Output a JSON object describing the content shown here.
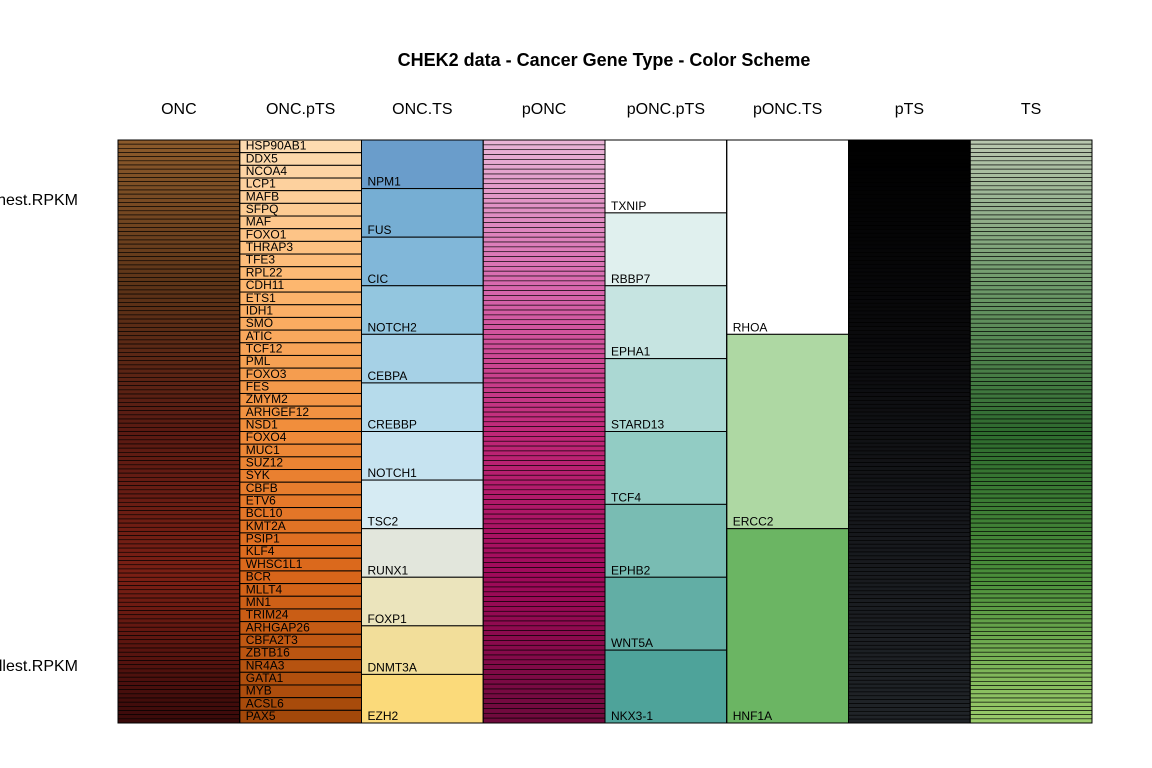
{
  "chart_data": {
    "type": "stacked-color-columns",
    "title": "CHEK2 data - Cancer Gene Type - Color Scheme",
    "row_labels": [
      "hest.RPKM",
      "llest.RPKM"
    ],
    "columns": [
      {
        "name": "ONC",
        "count": 140,
        "colors": [
          "#8B5A2B",
          "#5C3317",
          "#5A1A12",
          "#7A1F14",
          "#3A0A0A"
        ],
        "labels": []
      },
      {
        "name": "ONC.pTS",
        "colors": [
          "#FDDBB0",
          "#FDB66E",
          "#F08C3A",
          "#D9661A",
          "#A3480A"
        ],
        "labels": [
          "HSP90AB1",
          "DDX5",
          "NCOA4",
          "LCP1",
          "MAFB",
          "SFPQ",
          "MAF",
          "FOXO1",
          "THRAP3",
          "TFE3",
          "RPL22",
          "CDH11",
          "ETS1",
          "IDH1",
          "SMO",
          "ATIC",
          "TCF12",
          "PML",
          "FOXO3",
          "FES",
          "ZMYM2",
          "ARHGEF12",
          "NSD1",
          "FOXO4",
          "MUC1",
          "SUZ12",
          "SYK",
          "CBFB",
          "ETV6",
          "BCL10",
          "KMT2A",
          "PSIP1",
          "KLF4",
          "WHSC1L1",
          "BCR",
          "MLLT4",
          "MN1",
          "TRIM24",
          "ARHGAP26",
          "CBFA2T3",
          "ZBTB16",
          "NR4A3",
          "GATA1",
          "MYB",
          "ACSL6",
          "PAX5"
        ]
      },
      {
        "name": "ONC.TS",
        "labels": [
          "NPM1",
          "FUS",
          "CIC",
          "NOTCH2",
          "CEBPA",
          "CREBBP",
          "NOTCH1",
          "TSC2",
          "RUNX1",
          "FOXP1",
          "DNMT3A",
          "EZH2"
        ],
        "colors": [
          "#6A9DCB",
          "#76AED3",
          "#81B7D9",
          "#93C6DF",
          "#A6D1E6",
          "#B6DBEB",
          "#C6E3F0",
          "#D6EBF3",
          "#E2E6DC",
          "#EBE4BC",
          "#F2DE9A",
          "#FBDA7A"
        ]
      },
      {
        "name": "pONC",
        "count": 120,
        "colors": [
          "#E8B3D6",
          "#D868AE",
          "#C02878",
          "#A00A5A",
          "#6E0A3C"
        ],
        "labels": []
      },
      {
        "name": "pONC.pTS",
        "labels": [
          "TXNIP",
          "RBBP7",
          "EPHA1",
          "STARD13",
          "TCF4",
          "EPHB2",
          "WNT5A",
          "NKX3-1"
        ],
        "colors": [
          "#FFFFFF",
          "#E0F0EE",
          "#C6E4E1",
          "#ABD8D3",
          "#92CCC4",
          "#79BCB3",
          "#62AEA5",
          "#4EA39A"
        ]
      },
      {
        "name": "pONC.TS",
        "labels": [
          "RHOA",
          "ERCC2",
          "HNF1A"
        ],
        "colors": [
          "#FFFFFF",
          "#AED8A3",
          "#6BB563"
        ]
      },
      {
        "name": "pTS",
        "count": 150,
        "colors": [
          "#000000",
          "#0A0A0C",
          "#16181C",
          "#202428"
        ],
        "labels": []
      },
      {
        "name": "TS",
        "count": 140,
        "colors": [
          "#B8C7AE",
          "#6E9A6A",
          "#2E6A2E",
          "#4A8E3A",
          "#9ACB6A"
        ],
        "labels": []
      }
    ]
  }
}
